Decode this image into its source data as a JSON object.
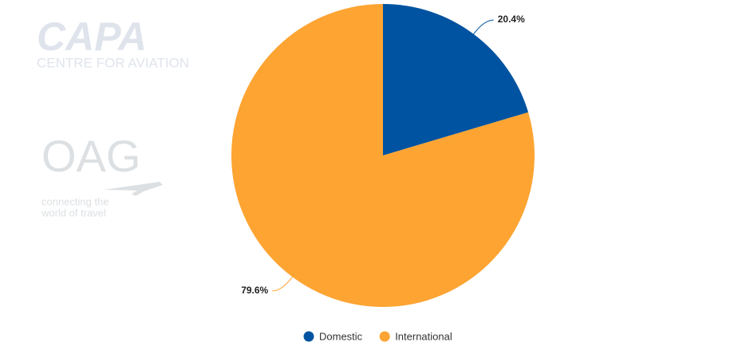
{
  "chart_data": {
    "type": "pie",
    "categories": [
      "Domestic",
      "International"
    ],
    "values": [
      20.4,
      79.6
    ],
    "value_labels": [
      "20.4%",
      "79.6%"
    ],
    "colors": [
      "#0053a0",
      "#fda433"
    ],
    "legend": "bottom"
  },
  "logos": {
    "capa": "CAPA",
    "capa_subtitle": "CENTRE FOR AVIATION",
    "oag": "OAG",
    "oag_tagline": [
      "connecting the",
      "world of travel"
    ]
  }
}
